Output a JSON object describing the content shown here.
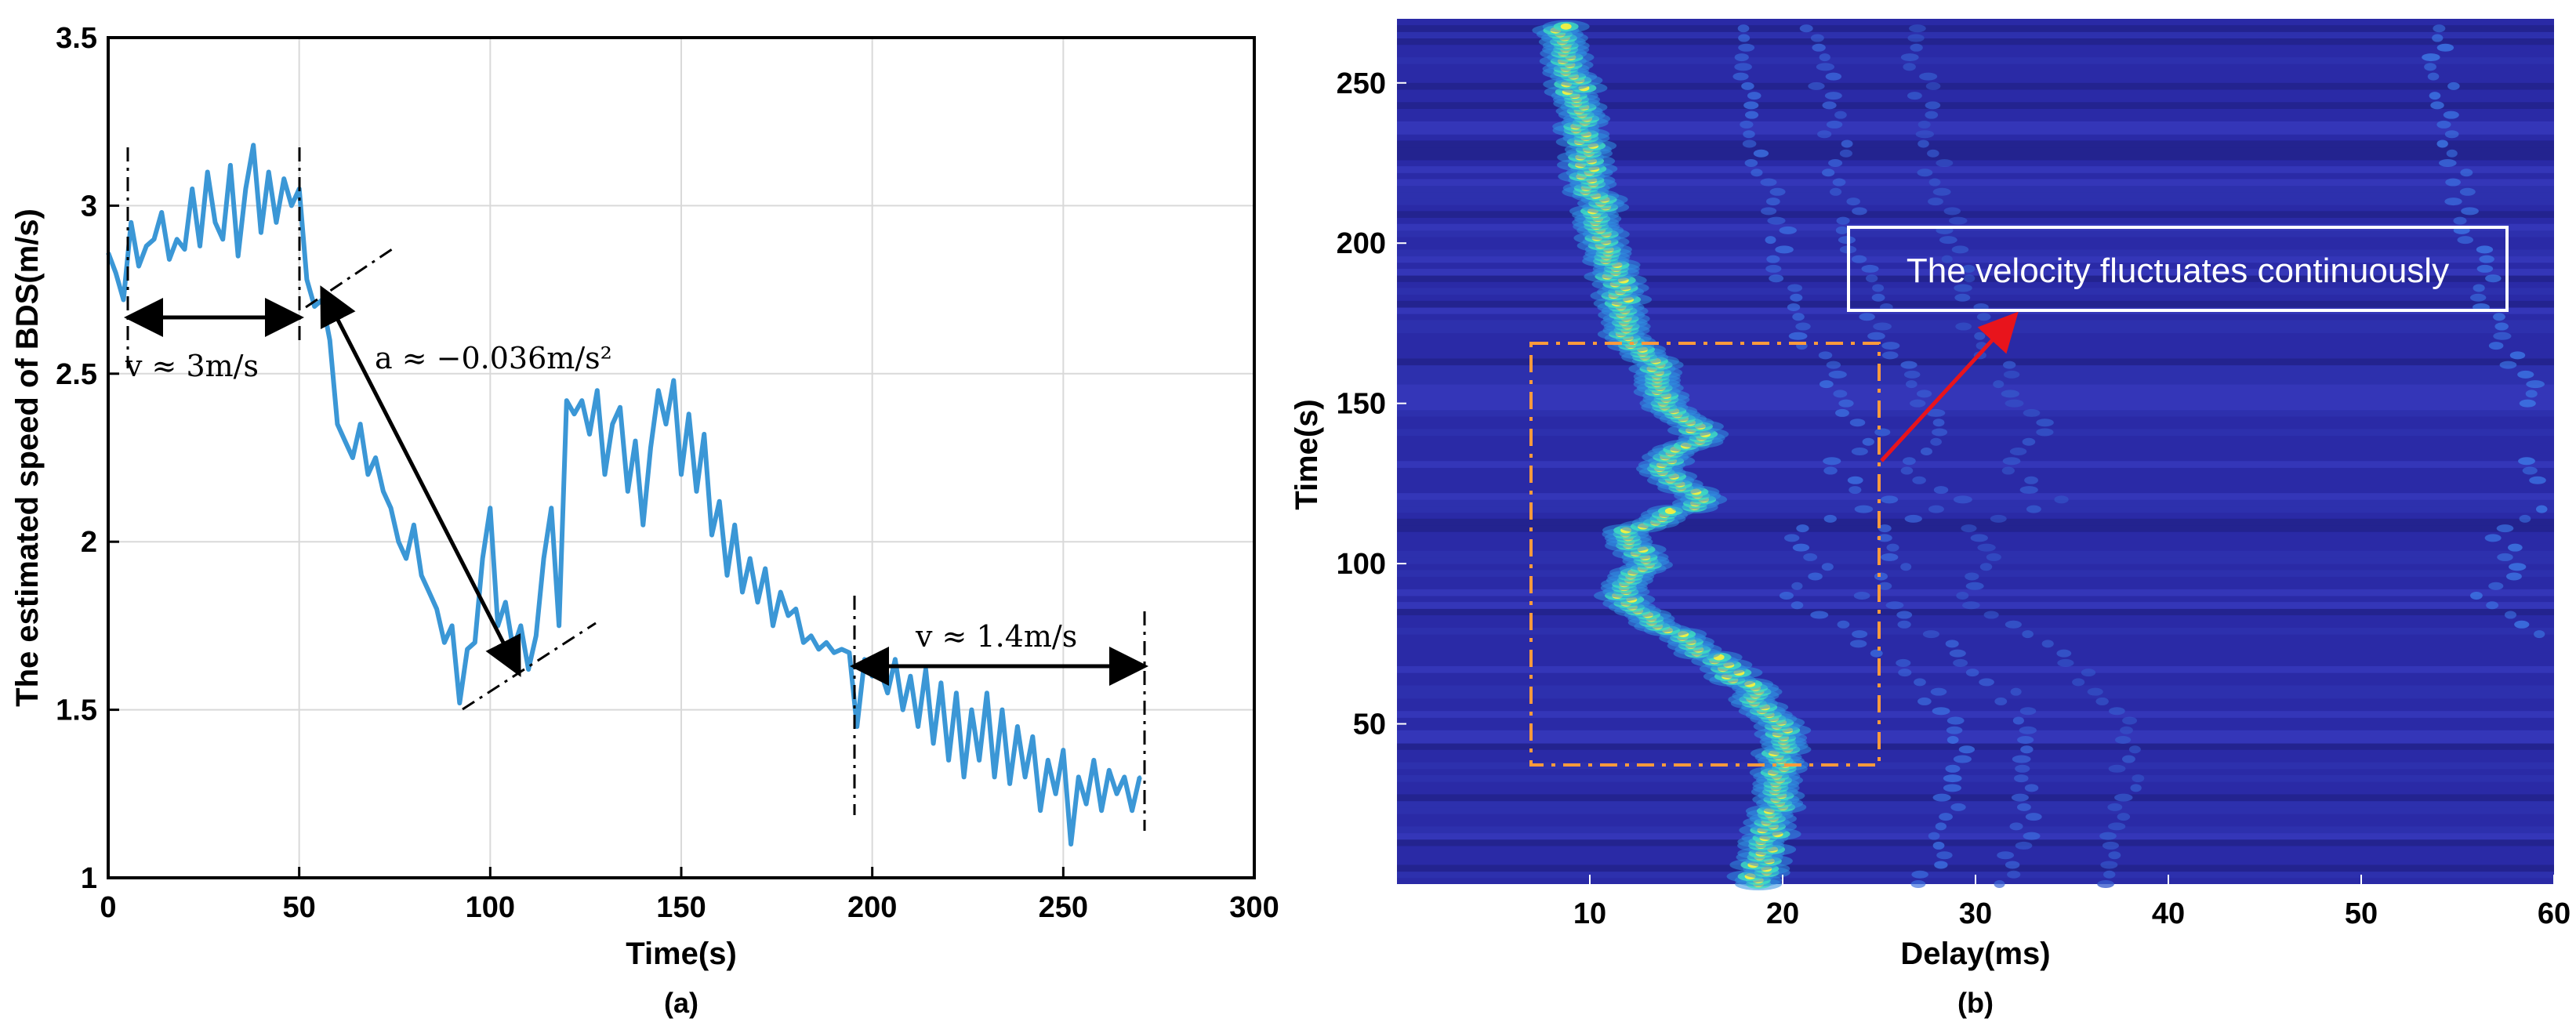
{
  "colors": {
    "series": "#3b97d6",
    "heat_low": "#2a2aa6",
    "heat_high": "#fff23a",
    "dash_box": "#ff9a3c",
    "callout_arrow": "#e8141c"
  },
  "chart_data": [
    {
      "type": "line",
      "caption": "(a)",
      "xlabel": "Time(s)",
      "ylabel": "The estimated speed of BDS(m/s)",
      "xlim": [
        0,
        300
      ],
      "ylim": [
        1,
        3.5
      ],
      "xticks": [
        "0",
        "50",
        "100",
        "150",
        "200",
        "250",
        "300"
      ],
      "yticks": [
        "1",
        "1.5",
        "2",
        "2.5",
        "3",
        "3.5"
      ],
      "grid": true,
      "series": [
        {
          "x": [
            0,
            2,
            4,
            6,
            8,
            10,
            12,
            14,
            16,
            18,
            20,
            22,
            24,
            26,
            28,
            30,
            32,
            34,
            36,
            38,
            40,
            42,
            44,
            46,
            48,
            50,
            52,
            54,
            56,
            58,
            60,
            62,
            64,
            66,
            68,
            70,
            72,
            74,
            76,
            78,
            80,
            82,
            84,
            86,
            88,
            90,
            92,
            94,
            96,
            98,
            100,
            102,
            104,
            106,
            108,
            110,
            112,
            114,
            116,
            118,
            120,
            122,
            124,
            126,
            128,
            130,
            132,
            134,
            136,
            138,
            140,
            142,
            144,
            146,
            148,
            150,
            152,
            154,
            156,
            158,
            160,
            162,
            164,
            166,
            168,
            170,
            172,
            174,
            176,
            178,
            180,
            182,
            184,
            186,
            188,
            190,
            192,
            194,
            196,
            198,
            200,
            202,
            204,
            206,
            208,
            210,
            212,
            214,
            216,
            218,
            220,
            222,
            224,
            226,
            228,
            230,
            232,
            234,
            236,
            238,
            240,
            242,
            244,
            246,
            248,
            250,
            252,
            254,
            256,
            258,
            260,
            262,
            264,
            266,
            268,
            270
          ],
          "y": [
            2.86,
            2.8,
            2.72,
            2.95,
            2.82,
            2.88,
            2.9,
            2.98,
            2.84,
            2.9,
            2.87,
            3.05,
            2.88,
            3.1,
            2.95,
            2.9,
            3.12,
            2.85,
            3.05,
            3.18,
            2.92,
            3.1,
            2.95,
            3.08,
            3.0,
            3.05,
            2.78,
            2.7,
            2.72,
            2.6,
            2.35,
            2.3,
            2.25,
            2.35,
            2.2,
            2.25,
            2.15,
            2.1,
            2.0,
            1.95,
            2.05,
            1.9,
            1.85,
            1.8,
            1.7,
            1.75,
            1.52,
            1.68,
            1.7,
            1.95,
            2.1,
            1.75,
            1.82,
            1.68,
            1.75,
            1.62,
            1.72,
            1.95,
            2.1,
            1.75,
            2.42,
            2.38,
            2.42,
            2.32,
            2.45,
            2.2,
            2.35,
            2.4,
            2.15,
            2.3,
            2.05,
            2.28,
            2.45,
            2.35,
            2.48,
            2.2,
            2.38,
            2.15,
            2.32,
            2.02,
            2.12,
            1.9,
            2.05,
            1.85,
            1.95,
            1.82,
            1.92,
            1.75,
            1.85,
            1.78,
            1.8,
            1.7,
            1.72,
            1.68,
            1.7,
            1.67,
            1.68,
            1.67,
            1.45,
            1.65,
            1.6,
            1.62,
            1.55,
            1.65,
            1.5,
            1.6,
            1.45,
            1.62,
            1.4,
            1.58,
            1.35,
            1.55,
            1.3,
            1.5,
            1.35,
            1.55,
            1.3,
            1.5,
            1.28,
            1.45,
            1.3,
            1.42,
            1.2,
            1.35,
            1.25,
            1.38,
            1.1,
            1.3,
            1.22,
            1.35,
            1.2,
            1.32,
            1.25,
            1.3,
            1.2,
            1.3
          ]
        }
      ],
      "annotations": [
        {
          "text": "v ≈ 3m/s"
        },
        {
          "text": "a ≈ −0.036m/s²"
        },
        {
          "text": "v ≈ 1.4m/s"
        }
      ]
    },
    {
      "type": "heatmap",
      "caption": "(b)",
      "xlabel": "Delay(ms)",
      "ylabel": "Time(s)",
      "xlim": [
        0,
        60
      ],
      "ylim": [
        0,
        270
      ],
      "xticks": [
        "10",
        "20",
        "30",
        "40",
        "50",
        "60"
      ],
      "yticks": [
        "50",
        "100",
        "150",
        "200",
        "250"
      ],
      "callout": "The velocity fluctuates continuously",
      "ridge": {
        "time": [
          0,
          10,
          20,
          30,
          40,
          50,
          60,
          70,
          80,
          90,
          100,
          110,
          120,
          130,
          140,
          150,
          160,
          170,
          180,
          190,
          200,
          210,
          220,
          230,
          240,
          250,
          260,
          270
        ],
        "delay": [
          18.5,
          19.2,
          19.5,
          19.8,
          20.0,
          19.8,
          18.5,
          16.5,
          14.0,
          11.5,
          13.0,
          11.8,
          16.0,
          13.5,
          15.8,
          14.0,
          13.5,
          12.0,
          11.8,
          11.2,
          10.8,
          10.5,
          10.0,
          9.8,
          9.5,
          9.2,
          8.8,
          8.6
        ]
      }
    }
  ]
}
